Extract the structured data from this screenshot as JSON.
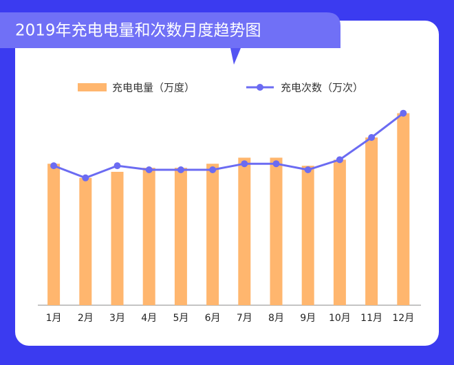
{
  "chart_data": {
    "type": "bar-line",
    "title": "2019年充电电量和次数月度趋势图",
    "categories": [
      "1月",
      "2月",
      "3月",
      "4月",
      "5月",
      "6月",
      "7月",
      "8月",
      "9月",
      "10月",
      "11月",
      "12月"
    ],
    "series": [
      {
        "name": "充电电量（万度）",
        "type": "bar",
        "color": "#ffb66e",
        "values": [
          70,
          63,
          66,
          68,
          68,
          70,
          73,
          73,
          69,
          72,
          83,
          95
        ]
      },
      {
        "name": "充电次数（万次）",
        "type": "line",
        "color": "#6b6bf2",
        "axis": "y2",
        "values": [
          69,
          63,
          69,
          67,
          67,
          67,
          70,
          70,
          67,
          72,
          83,
          95
        ]
      }
    ],
    "ylim": [
      0,
      100
    ],
    "y2lim": [
      0,
      100
    ],
    "grid": false
  }
}
